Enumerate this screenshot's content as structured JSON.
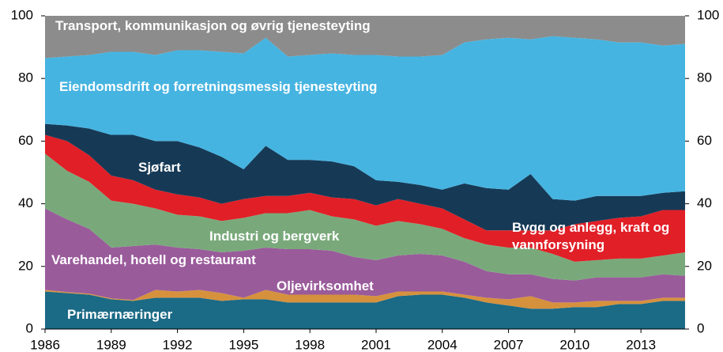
{
  "chart_data": {
    "type": "stacked_area",
    "x": [
      1986,
      1987,
      1988,
      1989,
      1990,
      1991,
      1992,
      1993,
      1994,
      1995,
      1996,
      1997,
      1998,
      1999,
      2000,
      2001,
      2002,
      2003,
      2004,
      2005,
      2006,
      2007,
      2008,
      2009,
      2010,
      2011,
      2012,
      2013,
      2014,
      2015
    ],
    "xlim": [
      1986,
      2015
    ],
    "xticks": [
      1986,
      1989,
      1992,
      1995,
      1998,
      2001,
      2004,
      2007,
      2010,
      2013
    ],
    "ylim": [
      0,
      100
    ],
    "yticks": [
      0,
      20,
      40,
      60,
      80,
      100
    ],
    "y2lim": [
      0,
      100
    ],
    "y2ticks": [
      0,
      20,
      40,
      60,
      80,
      100
    ],
    "series": [
      {
        "name": "Primærnæringer",
        "color": "#1b6a86",
        "values": [
          12,
          11.5,
          11,
          9.5,
          9,
          10,
          10,
          10,
          9,
          9.5,
          9.5,
          8.5,
          8.5,
          8.5,
          8.5,
          8.5,
          10.5,
          11,
          11,
          10,
          8.5,
          7.5,
          6.5,
          6.5,
          7,
          7,
          8,
          8,
          9,
          9
        ]
      },
      {
        "name": "Oljevirksomhet",
        "color": "#d6913d",
        "values": [
          0.5,
          0.3,
          0.3,
          0.3,
          0.3,
          2.5,
          2,
          2.5,
          2.5,
          0.5,
          3,
          2.5,
          2.5,
          2.5,
          2.5,
          2,
          1.5,
          1,
          1,
          1,
          1.5,
          2,
          4,
          2,
          1.5,
          2,
          1,
          1,
          1,
          1
        ]
      },
      {
        "name": "Varehandel, hotell og restaurant",
        "color": "#9a5b9b",
        "values": [
          26,
          23.2,
          20.7,
          16.2,
          17.2,
          14.5,
          14,
          13,
          13,
          15,
          13.5,
          14.5,
          14.5,
          14,
          12,
          11.5,
          11.5,
          12,
          11.5,
          10.5,
          8.5,
          8,
          7,
          7.5,
          7,
          7.5,
          7.5,
          7.5,
          7.5,
          7
        ]
      },
      {
        "name": "Industri og bergverk",
        "color": "#79a97b",
        "values": [
          17.5,
          15.5,
          15,
          15,
          13.5,
          11.5,
          10.5,
          10.5,
          10,
          10.5,
          11,
          11.5,
          12.5,
          11,
          12,
          11,
          11,
          9.5,
          8.5,
          7.5,
          8.5,
          8.5,
          8.5,
          8,
          6,
          5.5,
          6,
          6,
          6,
          7.5
        ]
      },
      {
        "name": "Bygg og anlegg, kraft og vannforsyning",
        "color": "#e11f27",
        "values": [
          6,
          9.5,
          8.5,
          8,
          7.5,
          6,
          6.5,
          6,
          5.5,
          6,
          5.5,
          5.5,
          5.5,
          6,
          6.5,
          6.5,
          7,
          6.5,
          6.5,
          6,
          4.5,
          5.5,
          5.5,
          7.5,
          12,
          12.5,
          13,
          13.5,
          14.5,
          13.5
        ]
      },
      {
        "name": "Sjøfart",
        "color": "#163a56",
        "values": [
          3.5,
          5,
          8.5,
          13,
          14.5,
          15.5,
          17,
          16,
          15,
          9.5,
          16,
          11.5,
          10.5,
          11.5,
          10.5,
          8,
          5.5,
          6,
          6,
          11.5,
          13.5,
          13,
          18,
          10,
          7.5,
          8,
          7,
          6.5,
          5.5,
          6
        ]
      },
      {
        "name": "Eiendomsdrift og forretningsmessig tjenesteyting",
        "color": "#46b4e1",
        "values": [
          21,
          22,
          23.5,
          26.5,
          26.5,
          27.5,
          29,
          31,
          33.5,
          37,
          34.5,
          33,
          33.5,
          34.5,
          35.5,
          40,
          40,
          41,
          43,
          45,
          47.5,
          48.5,
          43,
          52,
          52,
          50,
          49,
          49,
          47,
          47
        ]
      },
      {
        "name": "Transport, kommunikasjon og øvrig tjenesteyting",
        "color": "#8c8c8c",
        "values": [
          13.5,
          13,
          12.5,
          11.5,
          11.5,
          12.5,
          11,
          11,
          11.5,
          12,
          7,
          13,
          12.5,
          12,
          12.5,
          12.5,
          13,
          13,
          12.5,
          8.5,
          7.5,
          7,
          7.5,
          6.5,
          7,
          7.5,
          8.5,
          8.5,
          9.5,
          9
        ]
      }
    ]
  }
}
